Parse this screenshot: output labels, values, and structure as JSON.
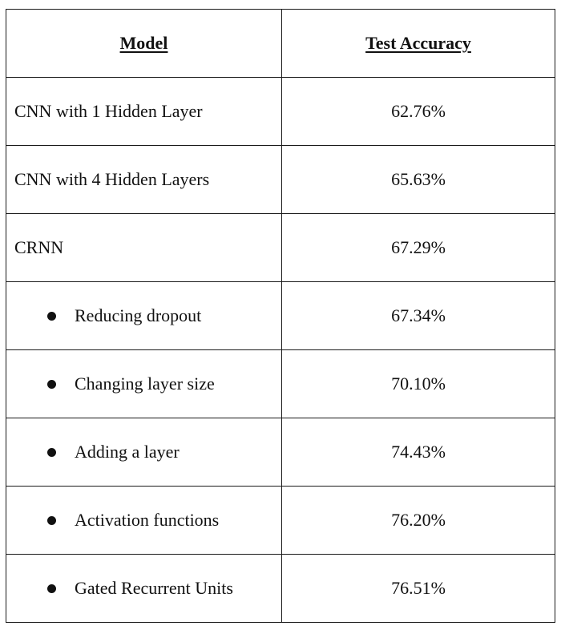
{
  "table": {
    "headers": {
      "model": "Model",
      "accuracy": "Test Accuracy"
    },
    "rows": [
      {
        "model": "CNN with 1 Hidden Layer",
        "accuracy": "62.76%",
        "indent": false
      },
      {
        "model": "CNN with 4 Hidden Layers",
        "accuracy": "65.63%",
        "indent": false
      },
      {
        "model": "CRNN",
        "accuracy": "67.29%",
        "indent": false
      },
      {
        "model": "Reducing dropout",
        "accuracy": "67.34%",
        "indent": true
      },
      {
        "model": "Changing layer size",
        "accuracy": "70.10%",
        "indent": true
      },
      {
        "model": "Adding a layer",
        "accuracy": "74.43%",
        "indent": true
      },
      {
        "model": "Activation functions",
        "accuracy": "76.20%",
        "indent": true
      },
      {
        "model": "Gated Recurrent Units",
        "accuracy": "76.51%",
        "indent": true
      }
    ]
  }
}
